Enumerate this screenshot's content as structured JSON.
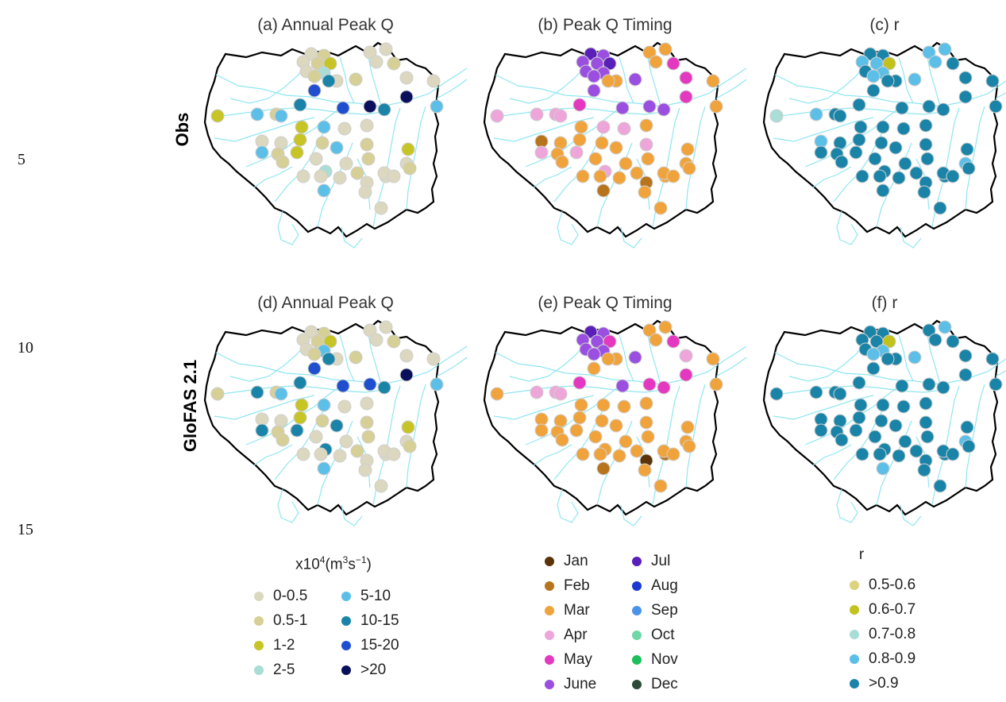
{
  "line_numbers": [
    "5",
    "10",
    "15"
  ],
  "rows": [
    {
      "label": "Obs",
      "panels": [
        "(a) Annual Peak Q",
        "(b) Peak Q Timing",
        "(c) r"
      ]
    },
    {
      "label": "GloFAS 2.1",
      "panels": [
        "(d) Annual Peak Q",
        "(e) Peak Q Timing",
        "(f) r"
      ]
    }
  ],
  "colors": {
    "basin_outline": "#000000",
    "rivers": "#8fe6f0"
  },
  "legends": {
    "peakq": {
      "title_prefix": "x10",
      "title_sup1": "4",
      "title_unit": "(m",
      "title_sup2": "3",
      "title_s": "s",
      "title_sup3": "−1",
      "title_close": ")",
      "items": [
        {
          "label": "0-0.5",
          "color": "#dcd8bf"
        },
        {
          "label": "0.5-1",
          "color": "#d6cf96"
        },
        {
          "label": "1-2",
          "color": "#c7c425"
        },
        {
          "label": "2-5",
          "color": "#a9ddd6"
        },
        {
          "label": "5-10",
          "color": "#5bbfe8"
        },
        {
          "label": "10-15",
          "color": "#1a84a8"
        },
        {
          "label": "15-20",
          "color": "#1f4fcf"
        },
        {
          "label": ">20",
          "color": "#0a0f5c"
        }
      ]
    },
    "timing": {
      "items": [
        {
          "label": "Jan",
          "color": "#5a3408"
        },
        {
          "label": "Feb",
          "color": "#b8741d"
        },
        {
          "label": "Mar",
          "color": "#f0a33a"
        },
        {
          "label": "Apr",
          "color": "#eea5d9"
        },
        {
          "label": "May",
          "color": "#e438c0"
        },
        {
          "label": "June",
          "color": "#9a4fe0"
        },
        {
          "label": "Jul",
          "color": "#5a1fb8"
        },
        {
          "label": "Aug",
          "color": "#1c39d1"
        },
        {
          "label": "Sep",
          "color": "#4a93e6"
        },
        {
          "label": "Oct",
          "color": "#6fd8a4"
        },
        {
          "label": "Nov",
          "color": "#1ebf5a"
        },
        {
          "label": "Dec",
          "color": "#2d4a38"
        }
      ]
    },
    "r": {
      "title": "r",
      "items": [
        {
          "label": "0.5-0.6",
          "color": "#ddd27e"
        },
        {
          "label": "0.6-0.7",
          "color": "#c2c21d"
        },
        {
          "label": "0.7-0.8",
          "color": "#a9ddd6"
        },
        {
          "label": "0.8-0.9",
          "color": "#5bbfe8"
        },
        {
          "label": ">0.9",
          "color": "#1a84a8"
        }
      ]
    }
  },
  "maps": {
    "a": [
      "0-0.5",
      "0.5-1",
      "0-0.5",
      "0.5-1",
      "1-2",
      "0-0.5",
      "2-5",
      "0.5-1",
      "0-0.5",
      "0.5-1",
      "0-0.5",
      "0-0.5",
      "0-0.5",
      "0.5-1",
      "0-0.5",
      "0-0.5",
      "1-2",
      "5-10",
      "0.5-1",
      "5-10",
      "10-15",
      "15-20",
      "10-15",
      "15-20",
      ">20",
      "10-15",
      ">20",
      "5-10",
      "1-2",
      "5-10",
      "0-0.5",
      "0-0.5",
      "1-2",
      "0.5-1",
      "0-0.5",
      "0-0.5",
      "0.5-1",
      "5-10",
      "0.5-1",
      "1-2",
      "0-0.5",
      "0.5-1",
      "2-5",
      "0-0.5",
      "0.5-1",
      "5-10",
      "0-0.5",
      "0-0.5",
      "0-0.5",
      "0.5-1",
      "0-0.5",
      "0-0.5",
      "0-0.5",
      "1-2",
      "0-0.5",
      "0-0.5",
      "5-10",
      "0-0.5",
      "0-0.5",
      "0.5-1"
    ],
    "b": [
      "Jul",
      "June",
      "June",
      "June",
      "Jul",
      "June",
      "June",
      "June",
      "Mar",
      "June",
      "Mar",
      "Mar",
      "Mar",
      "May",
      "May",
      "Mar",
      "Apr",
      "Apr",
      "Apr",
      "Apr",
      "May",
      "June",
      "Mar",
      "June",
      "June",
      "June",
      "May",
      "Mar",
      "Mar",
      "Apr",
      "Feb",
      "Mar",
      "Mar",
      "Mar",
      "Apr",
      "Mar",
      "Apr",
      "Apr",
      "Mar",
      "Apr",
      "Mar",
      "Mar",
      "Apr",
      "Mar",
      "Mar",
      "Mar",
      "Mar",
      "Mar",
      "Mar",
      "Mar",
      "Feb",
      "Mar",
      "Mar",
      "Mar",
      "Mar",
      "Mar",
      "Feb",
      "Mar",
      "Mar",
      "Mar"
    ],
    "c": [
      ">0.9",
      ">0.9",
      "0.8-0.9",
      "0.8-0.9",
      "0.6-0.7",
      ">0.9",
      "0.8-0.9",
      "0.8-0.9",
      ">0.9",
      "0.8-0.9",
      "0.8-0.9",
      "0.8-0.9",
      "0.8-0.9",
      ">0.9",
      ">0.9",
      ">0.9",
      "0.7-0.8",
      "0.8-0.9",
      ">0.9",
      ">0.9",
      ">0.9",
      ">0.9",
      ">0.9",
      ">0.9",
      ">0.9",
      ">0.9",
      ">0.9",
      ">0.9",
      ">0.9",
      ">0.9",
      "0.8-0.9",
      ">0.9",
      ">0.9",
      ">0.9",
      ">0.9",
      ">0.9",
      ">0.9",
      ">0.9",
      ">0.9",
      ">0.9",
      ">0.9",
      ">0.9",
      ">0.9",
      ">0.9",
      ">0.9",
      ">0.9",
      ">0.9",
      ">0.9",
      ">0.9",
      ">0.9",
      ">0.9",
      ">0.9",
      "0.8-0.9",
      ">0.9",
      ">0.9",
      ">0.9",
      ">0.9",
      ">0.9",
      ">0.9",
      ">0.9"
    ],
    "d": [
      "0-0.5",
      "0.5-1",
      "0-0.5",
      "0.5-1",
      "1-2",
      "0-0.5",
      "5-10",
      "0.5-1",
      "0-0.5",
      "0.5-1",
      "0-0.5",
      "0-0.5",
      "0-0.5",
      "0.5-1",
      "0-0.5",
      "0-0.5",
      "0.5-1",
      "10-15",
      "0.5-1",
      "5-10",
      "10-15",
      "15-20",
      "10-15",
      "15-20",
      "15-20",
      "10-15",
      ">20",
      "5-10",
      "1-2",
      "5-10",
      "0-0.5",
      "0-0.5",
      "1-2",
      "0.5-1",
      "0-0.5",
      "0-0.5",
      "0.5-1",
      "10-15",
      "0.5-1",
      "10-15",
      "0-0.5",
      "0.5-1",
      "10-15",
      "0-0.5",
      "0.5-1",
      "10-15",
      "0-0.5",
      "0-0.5",
      "0-0.5",
      "0.5-1",
      "0-0.5",
      "0-0.5",
      "0-0.5",
      "1-2",
      "0-0.5",
      "0-0.5",
      "5-10",
      "0-0.5",
      "0-0.5",
      "0.5-1"
    ],
    "e": [
      "Jul",
      "June",
      "June",
      "June",
      "May",
      "June",
      "June",
      "June",
      "Mar",
      "June",
      "Mar",
      "Mar",
      "Mar",
      "May",
      "Apr",
      "Mar",
      "Mar",
      "Apr",
      "Apr",
      "Apr",
      "May",
      "Mar",
      "Mar",
      "June",
      "May",
      "May",
      "May",
      "Mar",
      "Mar",
      "Mar",
      "Mar",
      "Mar",
      "Mar",
      "Mar",
      "Mar",
      "Mar",
      "Mar",
      "Mar",
      "Mar",
      "Mar",
      "Mar",
      "Mar",
      "Mar",
      "Mar",
      "Mar",
      "Mar",
      "Mar",
      "Mar",
      "Mar",
      "Mar",
      "Jan",
      "Feb",
      "Mar",
      "Mar",
      "Mar",
      "Mar",
      "Feb",
      "Mar",
      "Mar",
      "Mar"
    ],
    "f": [
      ">0.9",
      ">0.9",
      ">0.9",
      ">0.9",
      "0.6-0.7",
      ">0.9",
      "0.8-0.9",
      "0.8-0.9",
      ">0.9",
      "0.8-0.9",
      ">0.9",
      "0.8-0.9",
      ">0.9",
      ">0.9",
      ">0.9",
      ">0.9",
      ">0.9",
      ">0.9",
      ">0.9",
      ">0.9",
      ">0.9",
      ">0.9",
      ">0.9",
      ">0.9",
      ">0.9",
      ">0.9",
      ">0.9",
      ">0.9",
      ">0.9",
      ">0.9",
      ">0.9",
      ">0.9",
      ">0.9",
      ">0.9",
      ">0.9",
      ">0.9",
      ">0.9",
      ">0.9",
      ">0.9",
      ">0.9",
      ">0.9",
      ">0.9",
      ">0.9",
      ">0.9",
      ">0.9",
      ">0.9",
      ">0.9",
      ">0.9",
      ">0.9",
      ">0.9",
      ">0.9",
      ">0.9",
      "0.8-0.9",
      ">0.9",
      ">0.9",
      ">0.9",
      "0.8-0.9",
      ">0.9",
      ">0.9",
      ">0.9"
    ]
  }
}
